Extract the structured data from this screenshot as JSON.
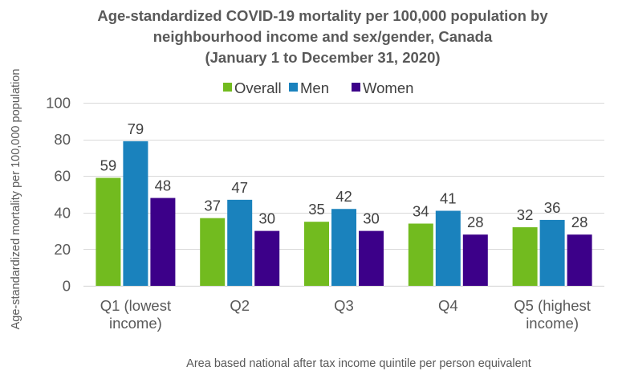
{
  "chart_data": {
    "type": "bar",
    "title": [
      "Age-standardized COVID-19 mortality per 100,000 population by",
      "neighbourhood  income and sex/gender, Canada",
      "(January 1 to December 31, 2020)"
    ],
    "xlabel": "Area based national after tax income quintile per person equivalent",
    "ylabel": "Age-standardized mortality per 100,000 population",
    "categories": [
      [
        "Q1 (lowest",
        "income)"
      ],
      [
        "Q2"
      ],
      [
        "Q3"
      ],
      [
        "Q4"
      ],
      [
        "Q5 (highest",
        "income)"
      ]
    ],
    "series": [
      {
        "name": "Overall",
        "color": "#72bb1f",
        "values": [
          59,
          37,
          35,
          34,
          32
        ]
      },
      {
        "name": "Men",
        "color": "#1a82bd",
        "values": [
          79,
          47,
          42,
          41,
          36
        ]
      },
      {
        "name": "Women",
        "color": "#3c0089",
        "values": [
          48,
          30,
          30,
          28,
          28
        ]
      }
    ],
    "ylim": [
      0,
      100
    ],
    "yticks": [
      0,
      20,
      40,
      60,
      80,
      100
    ],
    "grid": true,
    "legend_position": "top-center",
    "data_labels": true
  }
}
